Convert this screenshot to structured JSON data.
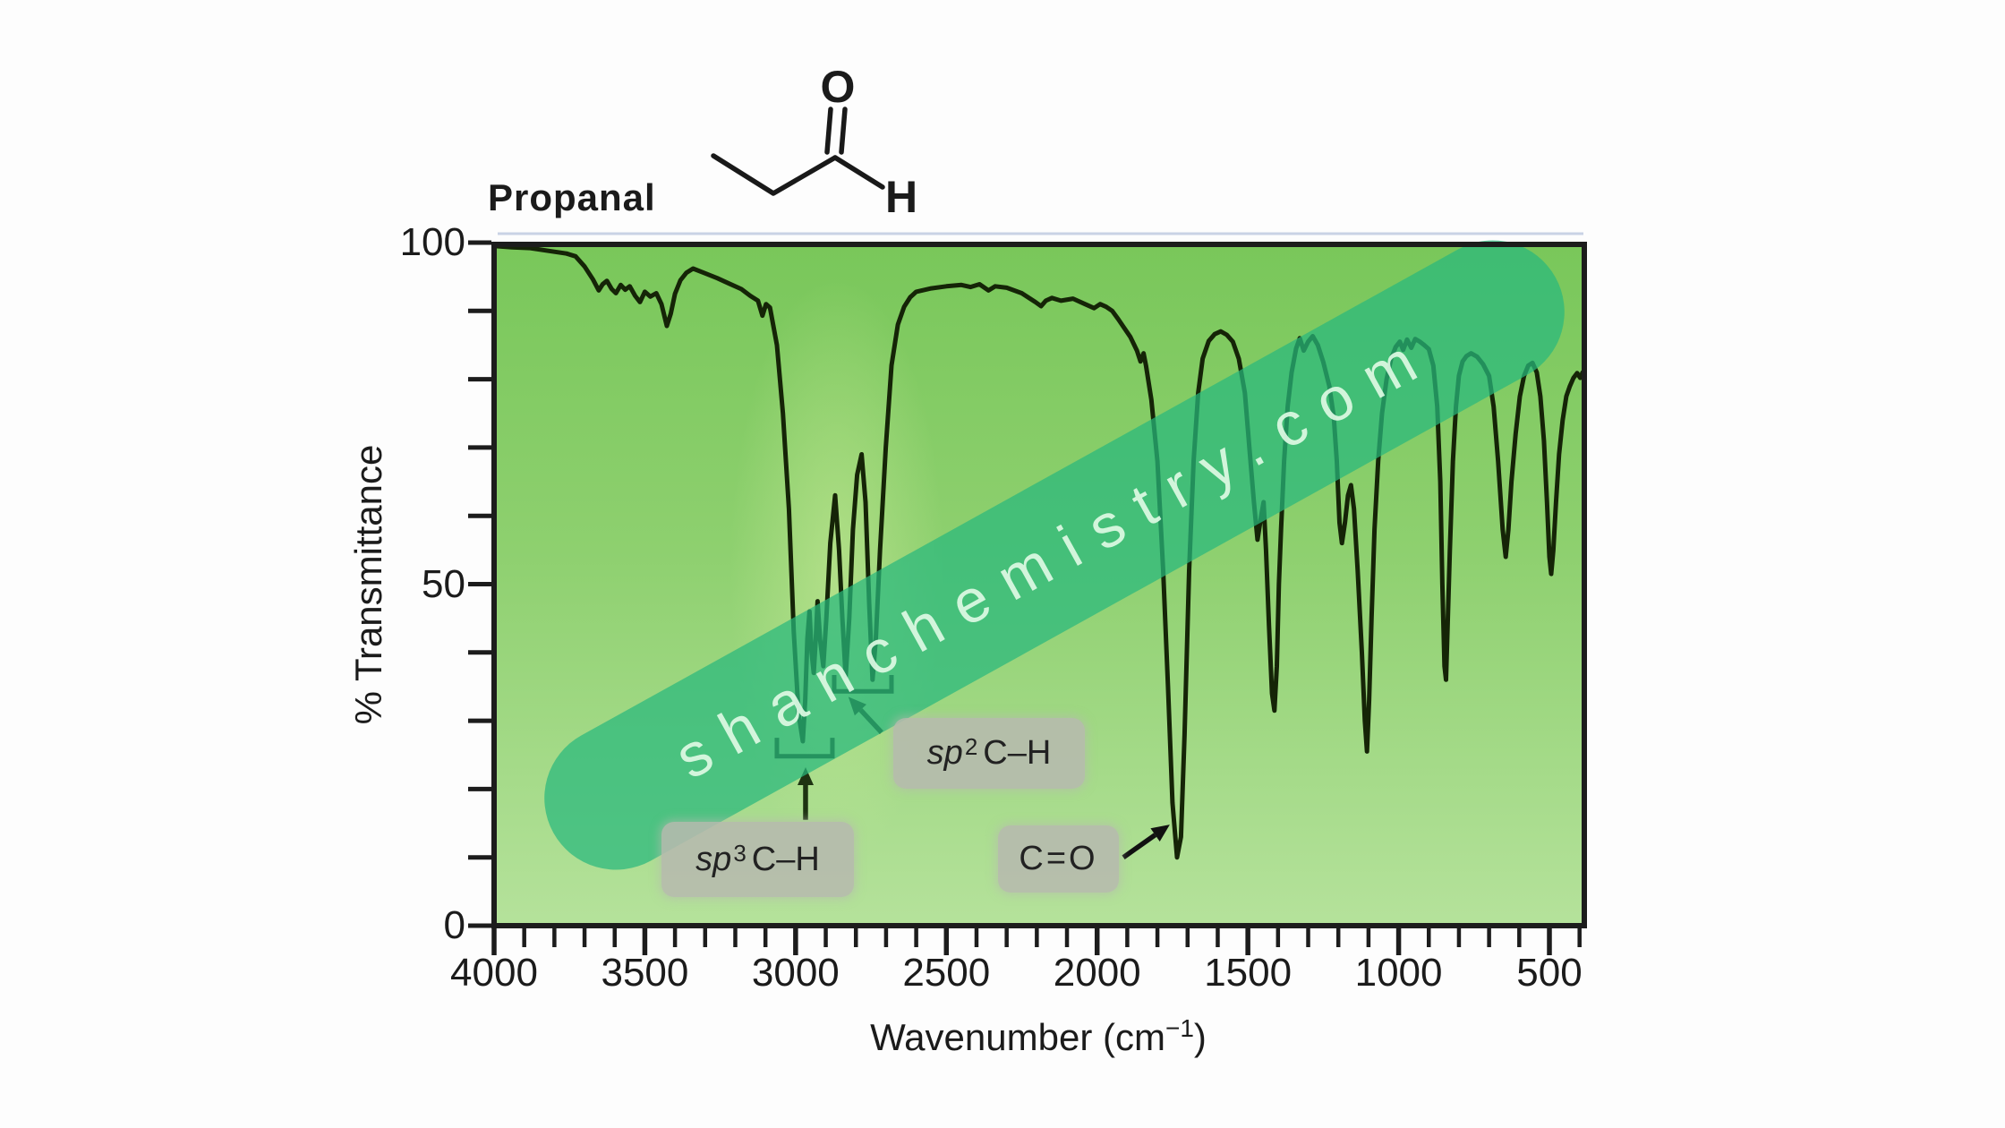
{
  "title": "Propanal",
  "molecule": {
    "name": "propanal skeletal structure",
    "carbonyl_atom": "O",
    "aldehyde_h": "H"
  },
  "watermark": {
    "text": "shanchemistry.com"
  },
  "palette": {
    "plot_green_top": "#79c75a",
    "plot_green_mid": "#8ed06f",
    "plot_green_bottom": "#b5e29b",
    "highlight_streak": "#cdeb9b",
    "watermark_band": "rgba(40,185,125,0.72)",
    "watermark_text": "#ddf9e4",
    "curve": "#152407",
    "axis": "#1c1c1c",
    "annotation_ink": "#1e3312",
    "label_box": "rgba(182,186,174,0.88)"
  },
  "chart_data": {
    "type": "line",
    "title": "Propanal",
    "xlabel": "Wavenumber (cm−1)",
    "xlabel_parts": {
      "pre": "Wavenumber (cm",
      "sup": "−1",
      "post": ")"
    },
    "ylabel": "% Transmittance",
    "x_ticks": [
      4000,
      3500,
      3000,
      2500,
      2000,
      1500,
      1000,
      500
    ],
    "x_minor_step": 100,
    "y_ticks": [
      100,
      50,
      0
    ],
    "y_minor_step": 10,
    "xlim": [
      4000,
      385
    ],
    "ylim": [
      0,
      100
    ],
    "x_axis_reversed": true,
    "grid": false,
    "series": [
      {
        "name": "IR spectrum of propanal (%T vs cm-1)",
        "points": [
          [
            4000,
            99.5
          ],
          [
            3940,
            99.3
          ],
          [
            3880,
            99.2
          ],
          [
            3820,
            98.8
          ],
          [
            3760,
            98.4
          ],
          [
            3730,
            98
          ],
          [
            3700,
            96.5
          ],
          [
            3672,
            94.6
          ],
          [
            3653,
            93
          ],
          [
            3640,
            93.9
          ],
          [
            3626,
            94.4
          ],
          [
            3610,
            93.2
          ],
          [
            3596,
            92.6
          ],
          [
            3580,
            93.8
          ],
          [
            3565,
            93.1
          ],
          [
            3550,
            93.6
          ],
          [
            3532,
            92.2
          ],
          [
            3516,
            91.3
          ],
          [
            3500,
            92.8
          ],
          [
            3482,
            92.1
          ],
          [
            3462,
            92.6
          ],
          [
            3445,
            91
          ],
          [
            3427,
            87.8
          ],
          [
            3414,
            89.6
          ],
          [
            3400,
            92.5
          ],
          [
            3382,
            94.5
          ],
          [
            3362,
            95.6
          ],
          [
            3340,
            96.2
          ],
          [
            3300,
            95.5
          ],
          [
            3260,
            94.8
          ],
          [
            3220,
            94
          ],
          [
            3180,
            93.2
          ],
          [
            3150,
            92.2
          ],
          [
            3125,
            91.5
          ],
          [
            3110,
            89.3
          ],
          [
            3098,
            91
          ],
          [
            3085,
            90.5
          ],
          [
            3062,
            85
          ],
          [
            3042,
            75
          ],
          [
            3022,
            61
          ],
          [
            3006,
            43
          ],
          [
            2990,
            31
          ],
          [
            2976,
            27
          ],
          [
            2968,
            33
          ],
          [
            2961,
            42
          ],
          [
            2954,
            46
          ],
          [
            2947,
            40
          ],
          [
            2940,
            37
          ],
          [
            2933,
            42
          ],
          [
            2927,
            47.5
          ],
          [
            2919,
            42
          ],
          [
            2908,
            38
          ],
          [
            2898,
            45
          ],
          [
            2885,
            56
          ],
          [
            2869,
            63
          ],
          [
            2856,
            55
          ],
          [
            2845,
            45
          ],
          [
            2834,
            36.5
          ],
          [
            2822,
            45
          ],
          [
            2810,
            58
          ],
          [
            2796,
            66
          ],
          [
            2781,
            69
          ],
          [
            2768,
            62
          ],
          [
            2756,
            47
          ],
          [
            2745,
            36
          ],
          [
            2734,
            42
          ],
          [
            2720,
            55
          ],
          [
            2701,
            70
          ],
          [
            2682,
            82
          ],
          [
            2661,
            88
          ],
          [
            2640,
            90.6
          ],
          [
            2620,
            92
          ],
          [
            2600,
            92.8
          ],
          [
            2550,
            93.3
          ],
          [
            2500,
            93.6
          ],
          [
            2450,
            93.8
          ],
          [
            2420,
            93.5
          ],
          [
            2390,
            93.9
          ],
          [
            2360,
            93
          ],
          [
            2338,
            93.6
          ],
          [
            2300,
            93.4
          ],
          [
            2250,
            92.6
          ],
          [
            2205,
            91.3
          ],
          [
            2186,
            90.7
          ],
          [
            2170,
            91.5
          ],
          [
            2150,
            91.9
          ],
          [
            2120,
            91.5
          ],
          [
            2080,
            91.8
          ],
          [
            2040,
            91
          ],
          [
            2010,
            90.4
          ],
          [
            1990,
            91
          ],
          [
            1970,
            90.6
          ],
          [
            1950,
            90
          ],
          [
            1930,
            88.8
          ],
          [
            1910,
            87.5
          ],
          [
            1890,
            86.2
          ],
          [
            1868,
            84.2
          ],
          [
            1856,
            82.6
          ],
          [
            1846,
            83.8
          ],
          [
            1838,
            82
          ],
          [
            1820,
            77
          ],
          [
            1800,
            68
          ],
          [
            1781,
            52
          ],
          [
            1765,
            35
          ],
          [
            1750,
            18
          ],
          [
            1735,
            10
          ],
          [
            1722,
            13
          ],
          [
            1710,
            28
          ],
          [
            1695,
            52
          ],
          [
            1680,
            68
          ],
          [
            1665,
            78
          ],
          [
            1650,
            83
          ],
          [
            1630,
            85.6
          ],
          [
            1610,
            86.6
          ],
          [
            1590,
            87
          ],
          [
            1570,
            86.5
          ],
          [
            1550,
            85.5
          ],
          [
            1530,
            83
          ],
          [
            1510,
            78
          ],
          [
            1495,
            70
          ],
          [
            1480,
            62
          ],
          [
            1468,
            56.5
          ],
          [
            1456,
            60
          ],
          [
            1448,
            62
          ],
          [
            1440,
            55
          ],
          [
            1430,
            44
          ],
          [
            1420,
            34
          ],
          [
            1412,
            31.5
          ],
          [
            1404,
            38
          ],
          [
            1397,
            50
          ],
          [
            1390,
            58
          ],
          [
            1380,
            68
          ],
          [
            1368,
            76
          ],
          [
            1355,
            81
          ],
          [
            1340,
            84.5
          ],
          [
            1328,
            86
          ],
          [
            1315,
            84.2
          ],
          [
            1300,
            85.5
          ],
          [
            1285,
            86.3
          ],
          [
            1268,
            85
          ],
          [
            1250,
            82.5
          ],
          [
            1230,
            79
          ],
          [
            1215,
            74.5
          ],
          [
            1205,
            68
          ],
          [
            1196,
            59
          ],
          [
            1188,
            56
          ],
          [
            1178,
            59
          ],
          [
            1168,
            63
          ],
          [
            1158,
            64.5
          ],
          [
            1148,
            61
          ],
          [
            1136,
            52
          ],
          [
            1122,
            40
          ],
          [
            1112,
            30
          ],
          [
            1105,
            25.5
          ],
          [
            1098,
            33
          ],
          [
            1090,
            45
          ],
          [
            1080,
            58
          ],
          [
            1068,
            68
          ],
          [
            1055,
            75
          ],
          [
            1040,
            80
          ],
          [
            1025,
            83
          ],
          [
            1010,
            84.7
          ],
          [
            996,
            85.5
          ],
          [
            985,
            84.3
          ],
          [
            972,
            85.8
          ],
          [
            958,
            84.6
          ],
          [
            945,
            85.9
          ],
          [
            930,
            85.5
          ],
          [
            915,
            85
          ],
          [
            900,
            84.4
          ],
          [
            885,
            82
          ],
          [
            872,
            76
          ],
          [
            862,
            65
          ],
          [
            855,
            50
          ],
          [
            848,
            38
          ],
          [
            843,
            36
          ],
          [
            838,
            43
          ],
          [
            830,
            55
          ],
          [
            820,
            68
          ],
          [
            810,
            76
          ],
          [
            800,
            80.5
          ],
          [
            788,
            82.6
          ],
          [
            775,
            83.4
          ],
          [
            760,
            83.8
          ],
          [
            740,
            83.3
          ],
          [
            720,
            82.2
          ],
          [
            700,
            80.5
          ],
          [
            685,
            76
          ],
          [
            670,
            68
          ],
          [
            655,
            58
          ],
          [
            645,
            54
          ],
          [
            636,
            58
          ],
          [
            626,
            65
          ],
          [
            612,
            72
          ],
          [
            598,
            77.5
          ],
          [
            584,
            80.5
          ],
          [
            570,
            82
          ],
          [
            556,
            82.4
          ],
          [
            542,
            81
          ],
          [
            530,
            77.5
          ],
          [
            518,
            71
          ],
          [
            508,
            62
          ],
          [
            500,
            54
          ],
          [
            494,
            51.5
          ],
          [
            487,
            55
          ],
          [
            478,
            62
          ],
          [
            468,
            69
          ],
          [
            456,
            74
          ],
          [
            444,
            77.5
          ],
          [
            432,
            79
          ],
          [
            420,
            80.2
          ],
          [
            408,
            80.9
          ],
          [
            398,
            80.2
          ],
          [
            390,
            81
          ],
          [
            386,
            80.2
          ]
        ]
      }
    ],
    "peak_assignments": [
      {
        "band_cm": "3000–2850",
        "label": "sp3 C–H stretch",
        "min_T": 27
      },
      {
        "band_cm": "2850–2700",
        "label": "sp2 (aldehyde) C–H stretch",
        "min_T": 36
      },
      {
        "band_cm": "1735",
        "label": "C=O stretch",
        "min_T": 10
      }
    ]
  },
  "annotations": {
    "labels": [
      {
        "id": "sp3",
        "italic": "sp",
        "sup": "3",
        "rest": " C–H"
      },
      {
        "id": "sp2",
        "italic": "sp",
        "sup": "2",
        "rest": " C–H"
      },
      {
        "id": "co",
        "italic": "",
        "sup": "",
        "rest": "C=O"
      }
    ],
    "brackets": [
      {
        "from_cm": 3062,
        "to_cm": 2878,
        "base_T": 24.8,
        "stub_T": 27.5
      },
      {
        "from_cm": 2872,
        "to_cm": 2682,
        "base_T": 34.3,
        "stub_T": 36.7
      }
    ],
    "arrows": [
      {
        "id": "sp3-arrow",
        "from": {
          "cm": 2967,
          "T": 15.5
        },
        "to": {
          "cm": 2967,
          "T": 23.2
        }
      },
      {
        "id": "sp2-arrow",
        "from": {
          "cm": 2715,
          "T": 28.3
        },
        "to": {
          "cm": 2825,
          "T": 33.5
        }
      },
      {
        "id": "co-arrow",
        "from": {
          "cm": 1913,
          "T": 10.0
        },
        "to": {
          "cm": 1759,
          "T": 14.8
        }
      }
    ]
  }
}
